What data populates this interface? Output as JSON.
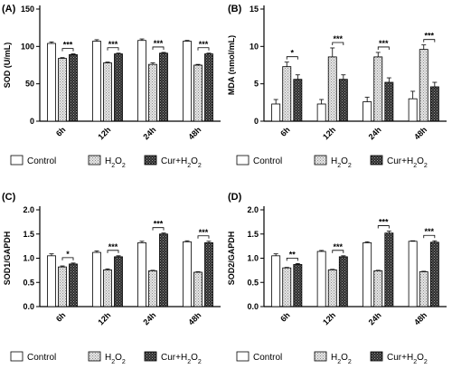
{
  "legend": [
    "Control",
    "H2O2",
    "Cur+H2O2"
  ],
  "colors": {
    "axis": "#000000",
    "control": "#ffffff",
    "h2o2": "#d4d4d4",
    "cur": "#3a3a3a"
  },
  "chart_data": [
    {
      "panel_label": "(A)",
      "type": "bar",
      "categories": [
        "6h",
        "12h",
        "24h",
        "48h"
      ],
      "ylabel": "SOD (U/mL)",
      "ylim": [
        0,
        150
      ],
      "yticks": [
        0,
        50,
        100,
        150
      ],
      "series": [
        {
          "name": "Control",
          "values": [
            104,
            107,
            108,
            107
          ],
          "errors": [
            2,
            2,
            2,
            1
          ]
        },
        {
          "name": "H2O2",
          "values": [
            84,
            78,
            76,
            75
          ],
          "errors": [
            1,
            1,
            2,
            1
          ]
        },
        {
          "name": "Cur+H2O2",
          "values": [
            89,
            90,
            91,
            90
          ],
          "errors": [
            1,
            1,
            1,
            1
          ]
        }
      ],
      "significance": [
        {
          "category": 0,
          "label": "***"
        },
        {
          "category": 1,
          "label": "***"
        },
        {
          "category": 2,
          "label": "***"
        },
        {
          "category": 3,
          "label": "***"
        }
      ]
    },
    {
      "panel_label": "(B)",
      "type": "bar",
      "categories": [
        "6h",
        "12h",
        "24h",
        "48h"
      ],
      "ylabel": "MDA (nmol/mL)",
      "ylim": [
        0,
        15
      ],
      "yticks": [
        0,
        5,
        10,
        15
      ],
      "series": [
        {
          "name": "Control",
          "values": [
            2.3,
            2.3,
            2.6,
            3.0
          ],
          "errors": [
            0.6,
            0.6,
            0.6,
            1.0
          ]
        },
        {
          "name": "H2O2",
          "values": [
            7.3,
            8.6,
            8.6,
            9.6
          ],
          "errors": [
            0.6,
            1.2,
            0.6,
            0.6
          ]
        },
        {
          "name": "Cur+H2O2",
          "values": [
            5.6,
            5.6,
            5.2,
            4.6
          ],
          "errors": [
            0.6,
            0.6,
            0.6,
            0.6
          ]
        }
      ],
      "significance": [
        {
          "category": 0,
          "label": "*"
        },
        {
          "category": 1,
          "label": "***"
        },
        {
          "category": 2,
          "label": "***"
        },
        {
          "category": 3,
          "label": "***"
        }
      ]
    },
    {
      "panel_label": "(C)",
      "type": "bar",
      "categories": [
        "6h",
        "12h",
        "24h",
        "48h"
      ],
      "ylabel": "SOD1/GAPDH",
      "ylim": [
        0,
        2.0
      ],
      "yticks": [
        0,
        0.5,
        1.0,
        1.5,
        2.0
      ],
      "series": [
        {
          "name": "Control",
          "values": [
            1.05,
            1.12,
            1.32,
            1.34
          ],
          "errors": [
            0.04,
            0.03,
            0.03,
            0.02
          ]
        },
        {
          "name": "H2O2",
          "values": [
            0.82,
            0.76,
            0.74,
            0.71
          ],
          "errors": [
            0.02,
            0.02,
            0.01,
            0.01
          ]
        },
        {
          "name": "Cur+H2O2",
          "values": [
            0.88,
            1.03,
            1.5,
            1.32
          ],
          "errors": [
            0.02,
            0.02,
            0.02,
            0.03
          ]
        }
      ],
      "significance": [
        {
          "category": 0,
          "label": "*"
        },
        {
          "category": 1,
          "label": "***"
        },
        {
          "category": 2,
          "label": "***"
        },
        {
          "category": 3,
          "label": "***"
        }
      ]
    },
    {
      "panel_label": "(D)",
      "type": "bar",
      "categories": [
        "6h",
        "12h",
        "24h",
        "48h"
      ],
      "ylabel": "SOD2/GAPDH",
      "ylim": [
        0,
        2.0
      ],
      "yticks": [
        0,
        0.5,
        1.0,
        1.5,
        2.0
      ],
      "series": [
        {
          "name": "Control",
          "values": [
            1.05,
            1.14,
            1.32,
            1.35
          ],
          "errors": [
            0.04,
            0.02,
            0.02,
            0.01
          ]
        },
        {
          "name": "H2O2",
          "values": [
            0.8,
            0.76,
            0.74,
            0.72
          ],
          "errors": [
            0.01,
            0.01,
            0.01,
            0.01
          ]
        },
        {
          "name": "Cur+H2O2",
          "values": [
            0.87,
            1.03,
            1.52,
            1.33
          ],
          "errors": [
            0.02,
            0.02,
            0.04,
            0.03
          ]
        }
      ],
      "significance": [
        {
          "category": 0,
          "label": "**"
        },
        {
          "category": 1,
          "label": "***"
        },
        {
          "category": 2,
          "label": "***"
        },
        {
          "category": 3,
          "label": "***"
        }
      ]
    }
  ]
}
